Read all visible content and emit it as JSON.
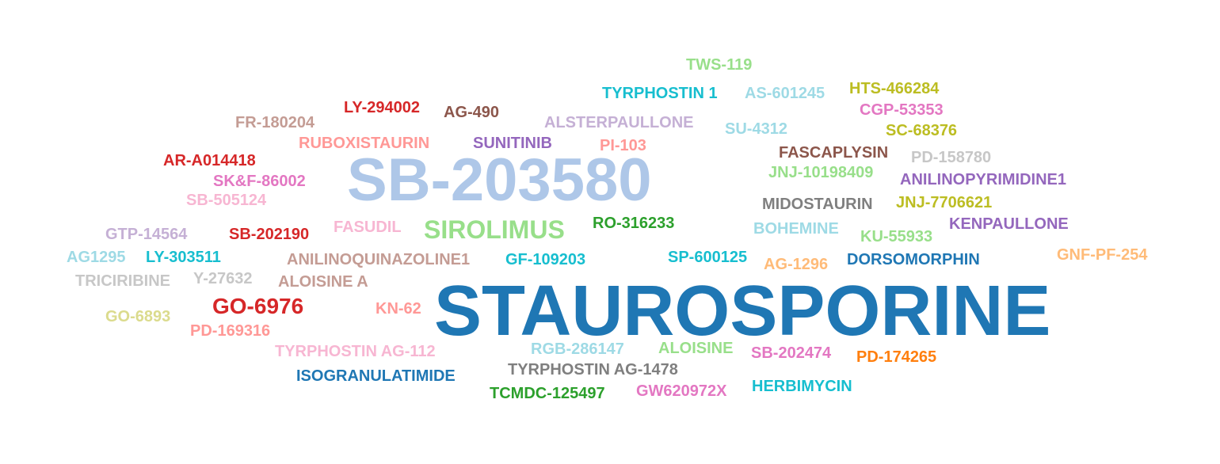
{
  "words": [
    {
      "text": "STAUROSPORINE",
      "color": "#1f77b4"
    },
    {
      "text": "SB-203580",
      "color": "#aec7e8"
    },
    {
      "text": "SIROLIMUS",
      "color": "#98df8a"
    },
    {
      "text": "GO-6976",
      "color": "#d62728"
    },
    {
      "text": "TWS-119",
      "color": "#98df8a"
    },
    {
      "text": "TYRPHOSTIN 1",
      "color": "#17becf"
    },
    {
      "text": "AS-601245",
      "color": "#9edae5"
    },
    {
      "text": "HTS-466284",
      "color": "#bcbd22"
    },
    {
      "text": "LY-294002",
      "color": "#d62728"
    },
    {
      "text": "AG-490",
      "color": "#8c564b"
    },
    {
      "text": "CGP-53353",
      "color": "#e377c2"
    },
    {
      "text": "FR-180204",
      "color": "#c49c94"
    },
    {
      "text": "ALSTERPAULLONE",
      "color": "#c5b0d5"
    },
    {
      "text": "SU-4312",
      "color": "#9edae5"
    },
    {
      "text": "SC-68376",
      "color": "#bcbd22"
    },
    {
      "text": "RUBOXISTAURIN",
      "color": "#ff9896"
    },
    {
      "text": "SUNITINIB",
      "color": "#9467bd"
    },
    {
      "text": "PI-103",
      "color": "#ff9896"
    },
    {
      "text": "FASCAPLYSIN",
      "color": "#8c564b"
    },
    {
      "text": "PD-158780",
      "color": "#c7c7c7"
    },
    {
      "text": "AR-A014418",
      "color": "#d62728"
    },
    {
      "text": "JNJ-10198409",
      "color": "#98df8a"
    },
    {
      "text": "SK&F-86002",
      "color": "#e377c2"
    },
    {
      "text": "ANILINOPYRIMIDINE1",
      "color": "#9467bd"
    },
    {
      "text": "SB-505124",
      "color": "#f7b6d2"
    },
    {
      "text": "MIDOSTAURIN",
      "color": "#7f7f7f"
    },
    {
      "text": "JNJ-7706621",
      "color": "#bcbd22"
    },
    {
      "text": "RO-316233",
      "color": "#2ca02c"
    },
    {
      "text": "KENPAULLONE",
      "color": "#9467bd"
    },
    {
      "text": "FASUDIL",
      "color": "#f7b6d2"
    },
    {
      "text": "BOHEMINE",
      "color": "#9edae5"
    },
    {
      "text": "GTP-14564",
      "color": "#c5b0d5"
    },
    {
      "text": "SB-202190",
      "color": "#d62728"
    },
    {
      "text": "KU-55933",
      "color": "#98df8a"
    },
    {
      "text": "GNF-PF-254",
      "color": "#ffbb78"
    },
    {
      "text": "AG1295",
      "color": "#9edae5"
    },
    {
      "text": "LY-303511",
      "color": "#17becf"
    },
    {
      "text": "ANILINOQUINAZOLINE1",
      "color": "#c49c94"
    },
    {
      "text": "GF-109203",
      "color": "#17becf"
    },
    {
      "text": "SP-600125",
      "color": "#17becf"
    },
    {
      "text": "AG-1296",
      "color": "#ffbb78"
    },
    {
      "text": "DORSOMORPHIN",
      "color": "#1f77b4"
    },
    {
      "text": "TRICIRIBINE",
      "color": "#c7c7c7"
    },
    {
      "text": "Y-27632",
      "color": "#c7c7c7"
    },
    {
      "text": "ALOISINE A",
      "color": "#c49c94"
    },
    {
      "text": "KN-62",
      "color": "#ff9896"
    },
    {
      "text": "GO-6893",
      "color": "#dbdb8d"
    },
    {
      "text": "PD-169316",
      "color": "#ff9896"
    },
    {
      "text": "TYRPHOSTIN AG-112",
      "color": "#f7b6d2"
    },
    {
      "text": "RGB-286147",
      "color": "#9edae5"
    },
    {
      "text": "ALOISINE",
      "color": "#98df8a"
    },
    {
      "text": "SB-202474",
      "color": "#e377c2"
    },
    {
      "text": "PD-174265",
      "color": "#ff7f0e"
    },
    {
      "text": "ISOGRANULATIMIDE",
      "color": "#1f77b4"
    },
    {
      "text": "TYRPHOSTIN AG-1478",
      "color": "#7f7f7f"
    },
    {
      "text": "HERBIMYCIN",
      "color": "#17becf"
    },
    {
      "text": "TCMDC-125497",
      "color": "#2ca02c"
    },
    {
      "text": "GW620972X",
      "color": "#e377c2"
    }
  ]
}
